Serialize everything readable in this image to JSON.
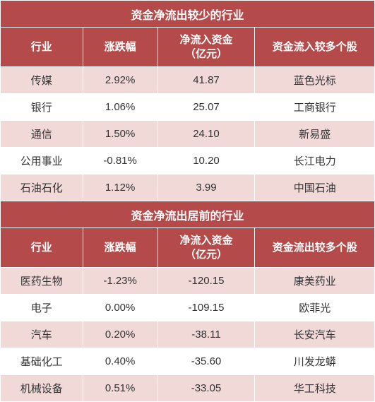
{
  "table1": {
    "title": "资金净流出较少的行业",
    "headers": [
      "行业",
      "涨跌幅",
      "净流入资金\n（亿元）",
      "资金流入较多个股"
    ],
    "rows": [
      [
        "传媒",
        "2.92%",
        "41.87",
        "蓝色光标"
      ],
      [
        "银行",
        "1.06%",
        "25.07",
        "工商银行"
      ],
      [
        "通信",
        "1.50%",
        "24.10",
        "新易盛"
      ],
      [
        "公用事业",
        "-0.81%",
        "10.20",
        "长江电力"
      ],
      [
        "石油石化",
        "1.12%",
        "3.99",
        "中国石油"
      ]
    ]
  },
  "table2": {
    "title": "资金净流出居前的行业",
    "headers": [
      "行业",
      "涨跌幅",
      "净流入资金\n（亿元）",
      "资金流出较多个股"
    ],
    "rows": [
      [
        "医药生物",
        "-1.23%",
        "-120.15",
        "康美药业"
      ],
      [
        "电子",
        "0.00%",
        "-109.15",
        "欧菲光"
      ],
      [
        "汽车",
        "0.20%",
        "-38.11",
        "长安汽车"
      ],
      [
        "基础化工",
        "0.40%",
        "-35.60",
        "川发龙蟒"
      ],
      [
        "机械设备",
        "0.51%",
        "-33.05",
        "华工科技"
      ]
    ]
  },
  "colors": {
    "header_bg": "#b44b4a",
    "header_text": "#ffffff",
    "odd_row_bg": "#f1d9d8",
    "even_row_bg": "#ffffff",
    "border": "#ffffff",
    "text": "#333333"
  }
}
